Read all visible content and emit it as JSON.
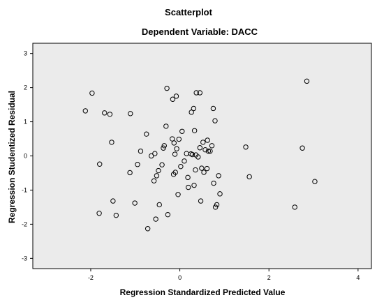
{
  "chart_data": {
    "type": "scatter",
    "title": "Scatterplot",
    "subtitle": "Dependent Variable: DACC",
    "xlabel": "Regression Standardized Predicted Value",
    "ylabel": "Regression Studentized Residual",
    "xlim": [
      -3.3,
      4.3
    ],
    "ylim": [
      -3.3,
      3.3
    ],
    "xticks": [
      -2,
      0,
      2,
      4
    ],
    "yticks": [
      3,
      2,
      1,
      0,
      -1,
      -2,
      -3
    ],
    "xtick_labels": [
      "-2",
      "0",
      "2",
      "4"
    ],
    "ytick_labels": [
      "3",
      "2",
      "1",
      "0",
      "-1",
      "-2",
      "-3"
    ],
    "plot_background": "#ebebeb",
    "marker": "hollow-circle",
    "grid": false,
    "legend": "none",
    "points": [
      {
        "x": -2.12,
        "y": 1.32
      },
      {
        "x": -1.97,
        "y": 1.84
      },
      {
        "x": -1.69,
        "y": 1.26
      },
      {
        "x": -1.57,
        "y": 1.22
      },
      {
        "x": -1.11,
        "y": 1.24
      },
      {
        "x": -1.8,
        "y": -0.24
      },
      {
        "x": -1.81,
        "y": -1.68
      },
      {
        "x": -1.53,
        "y": 0.4
      },
      {
        "x": -1.5,
        "y": -1.32
      },
      {
        "x": -1.43,
        "y": -1.74
      },
      {
        "x": -1.12,
        "y": -0.49
      },
      {
        "x": -1.01,
        "y": -1.38
      },
      {
        "x": -0.95,
        "y": -0.25
      },
      {
        "x": -0.88,
        "y": 0.14
      },
      {
        "x": -0.75,
        "y": 0.64
      },
      {
        "x": -0.72,
        "y": -2.13
      },
      {
        "x": -0.64,
        "y": 0.0
      },
      {
        "x": -0.58,
        "y": -0.73
      },
      {
        "x": -0.56,
        "y": 0.07
      },
      {
        "x": -0.54,
        "y": -1.85
      },
      {
        "x": -0.52,
        "y": -0.58
      },
      {
        "x": -0.48,
        "y": -0.43
      },
      {
        "x": -0.46,
        "y": -1.43
      },
      {
        "x": -0.4,
        "y": -0.26
      },
      {
        "x": -0.37,
        "y": 0.23
      },
      {
        "x": -0.35,
        "y": 0.3
      },
      {
        "x": -0.31,
        "y": 0.87
      },
      {
        "x": -0.29,
        "y": 1.98
      },
      {
        "x": -0.27,
        "y": -1.72
      },
      {
        "x": -0.17,
        "y": 0.5
      },
      {
        "x": -0.16,
        "y": 1.66
      },
      {
        "x": -0.14,
        "y": -0.54
      },
      {
        "x": -0.13,
        "y": 0.38
      },
      {
        "x": -0.11,
        "y": 0.05
      },
      {
        "x": -0.1,
        "y": -0.48
      },
      {
        "x": -0.08,
        "y": 1.75
      },
      {
        "x": -0.07,
        "y": 0.21
      },
      {
        "x": -0.04,
        "y": -1.13
      },
      {
        "x": -0.02,
        "y": 0.49
      },
      {
        "x": 0.02,
        "y": -0.31
      },
      {
        "x": 0.05,
        "y": 0.72
      },
      {
        "x": 0.1,
        "y": -0.15
      },
      {
        "x": 0.15,
        "y": 0.07
      },
      {
        "x": 0.18,
        "y": -0.63
      },
      {
        "x": 0.19,
        "y": -0.92
      },
      {
        "x": 0.25,
        "y": 0.06
      },
      {
        "x": 0.26,
        "y": 1.28
      },
      {
        "x": 0.28,
        "y": 0.04
      },
      {
        "x": 0.31,
        "y": 1.39
      },
      {
        "x": 0.32,
        "y": -0.86
      },
      {
        "x": 0.33,
        "y": 0.74
      },
      {
        "x": 0.35,
        "y": -0.41
      },
      {
        "x": 0.36,
        "y": 0.03
      },
      {
        "x": 0.37,
        "y": 1.85
      },
      {
        "x": 0.41,
        "y": -0.03
      },
      {
        "x": 0.45,
        "y": 0.24
      },
      {
        "x": 0.45,
        "y": 1.85
      },
      {
        "x": 0.47,
        "y": -1.32
      },
      {
        "x": 0.49,
        "y": -0.36
      },
      {
        "x": 0.52,
        "y": 0.4
      },
      {
        "x": 0.54,
        "y": -0.48
      },
      {
        "x": 0.57,
        "y": 0.18
      },
      {
        "x": 0.61,
        "y": -0.37
      },
      {
        "x": 0.62,
        "y": 0.46
      },
      {
        "x": 0.64,
        "y": 0.14
      },
      {
        "x": 0.68,
        "y": 0.14
      },
      {
        "x": 0.72,
        "y": 0.3
      },
      {
        "x": 0.75,
        "y": 1.39
      },
      {
        "x": 0.76,
        "y": -0.8
      },
      {
        "x": 0.79,
        "y": 1.03
      },
      {
        "x": 0.8,
        "y": -1.5
      },
      {
        "x": 0.83,
        "y": -1.43
      },
      {
        "x": 0.87,
        "y": -0.58
      },
      {
        "x": 0.9,
        "y": -1.11
      },
      {
        "x": 1.48,
        "y": 0.26
      },
      {
        "x": 1.56,
        "y": -0.61
      },
      {
        "x": 2.58,
        "y": -1.5
      },
      {
        "x": 2.75,
        "y": 0.23
      },
      {
        "x": 2.85,
        "y": 2.19
      },
      {
        "x": 3.03,
        "y": -0.75
      }
    ]
  }
}
